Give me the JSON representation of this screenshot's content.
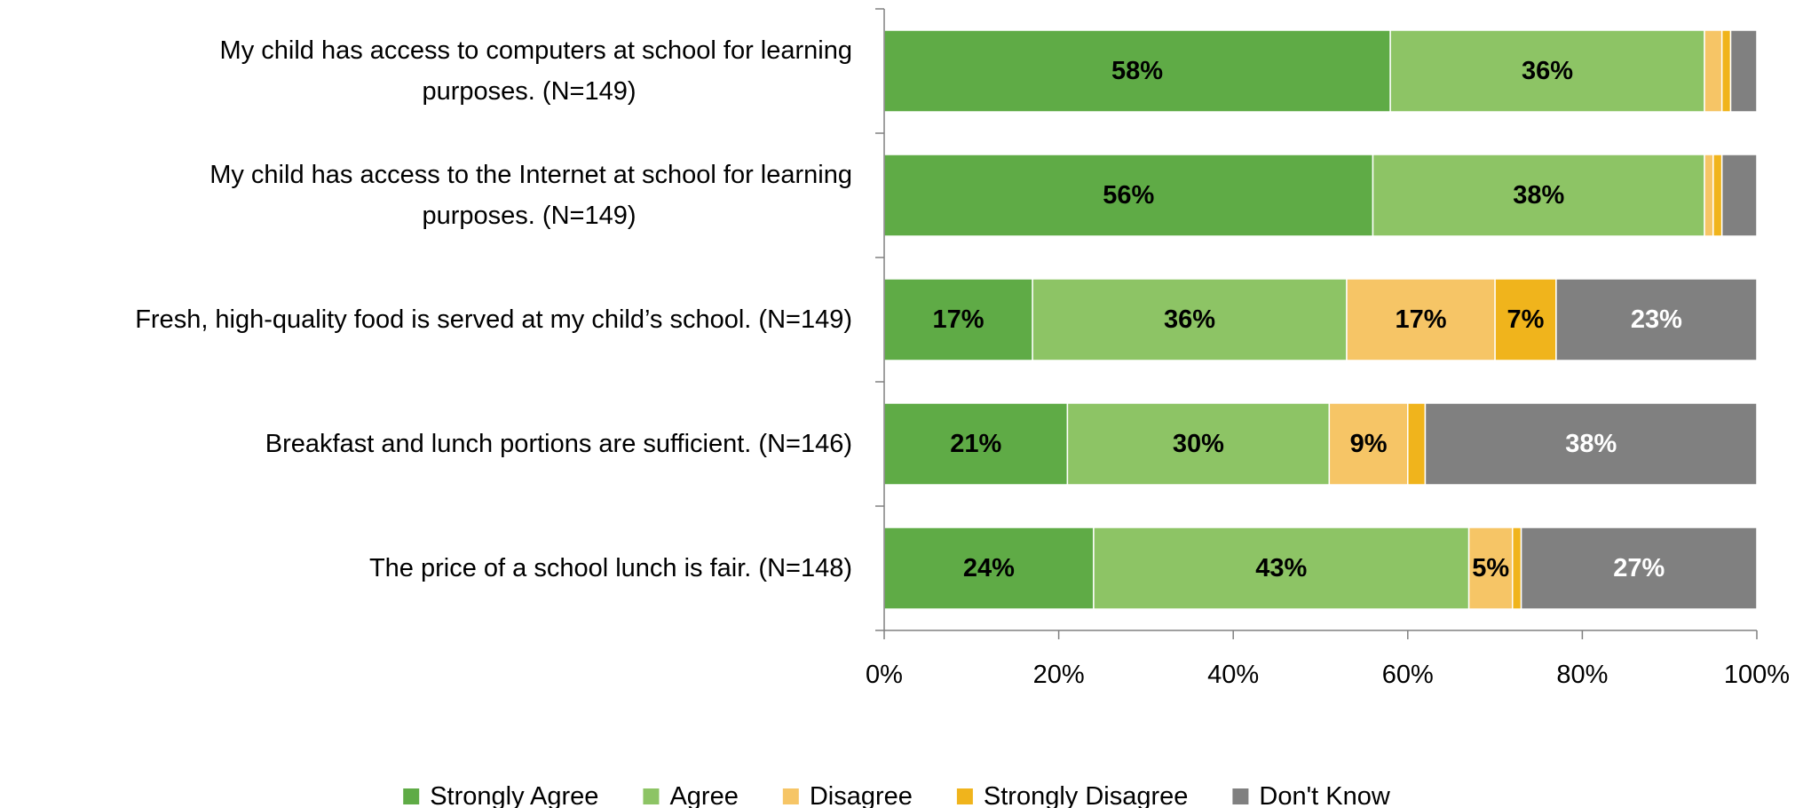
{
  "chart_data": {
    "type": "bar",
    "orientation": "horizontal",
    "stacked": "percent",
    "categories": [
      [
        "My child has access to computers at school for learning",
        "purposes. (N=149)"
      ],
      [
        "My child has access to the Internet at school for learning",
        "purposes. (N=149)"
      ],
      [
        "Fresh, high-quality food is served at my child’s school. (N=149)"
      ],
      [
        "Breakfast and lunch portions are sufficient. (N=146)"
      ],
      [
        "The price of a school lunch is fair. (N=148)"
      ]
    ],
    "series": [
      {
        "name": "Strongly Agree",
        "color": "#5fab46",
        "label_color": "#000000",
        "values": [
          58,
          56,
          17,
          21,
          24
        ],
        "labels": [
          "58%",
          "56%",
          "17%",
          "21%",
          "24%"
        ]
      },
      {
        "name": "Agree",
        "color": "#8dc465",
        "label_color": "#000000",
        "values": [
          36,
          38,
          36,
          30,
          43
        ],
        "labels": [
          "36%",
          "38%",
          "36%",
          "30%",
          "43%"
        ]
      },
      {
        "name": "Disagree",
        "color": "#f6c566",
        "label_color": "#000000",
        "values": [
          2,
          1,
          17,
          9,
          5
        ],
        "labels": [
          "",
          "",
          "17%",
          "9%",
          "5%"
        ]
      },
      {
        "name": "Strongly Disagree",
        "color": "#f0b41c",
        "label_color": "#000000",
        "values": [
          1,
          1,
          7,
          2,
          1
        ],
        "labels": [
          "",
          "",
          "7%",
          "",
          ""
        ]
      },
      {
        "name": "Don't Know",
        "color": "#808080",
        "label_color": "#ffffff",
        "values": [
          3,
          4,
          23,
          38,
          27
        ],
        "labels": [
          "",
          "",
          "23%",
          "38%",
          "27%"
        ]
      }
    ],
    "xlim": [
      0,
      100
    ],
    "xticks": [
      "0%",
      "20%",
      "40%",
      "60%",
      "80%",
      "100%"
    ],
    "title": "",
    "xlabel": "",
    "ylabel": "",
    "grid": false,
    "legend_position": "bottom"
  }
}
